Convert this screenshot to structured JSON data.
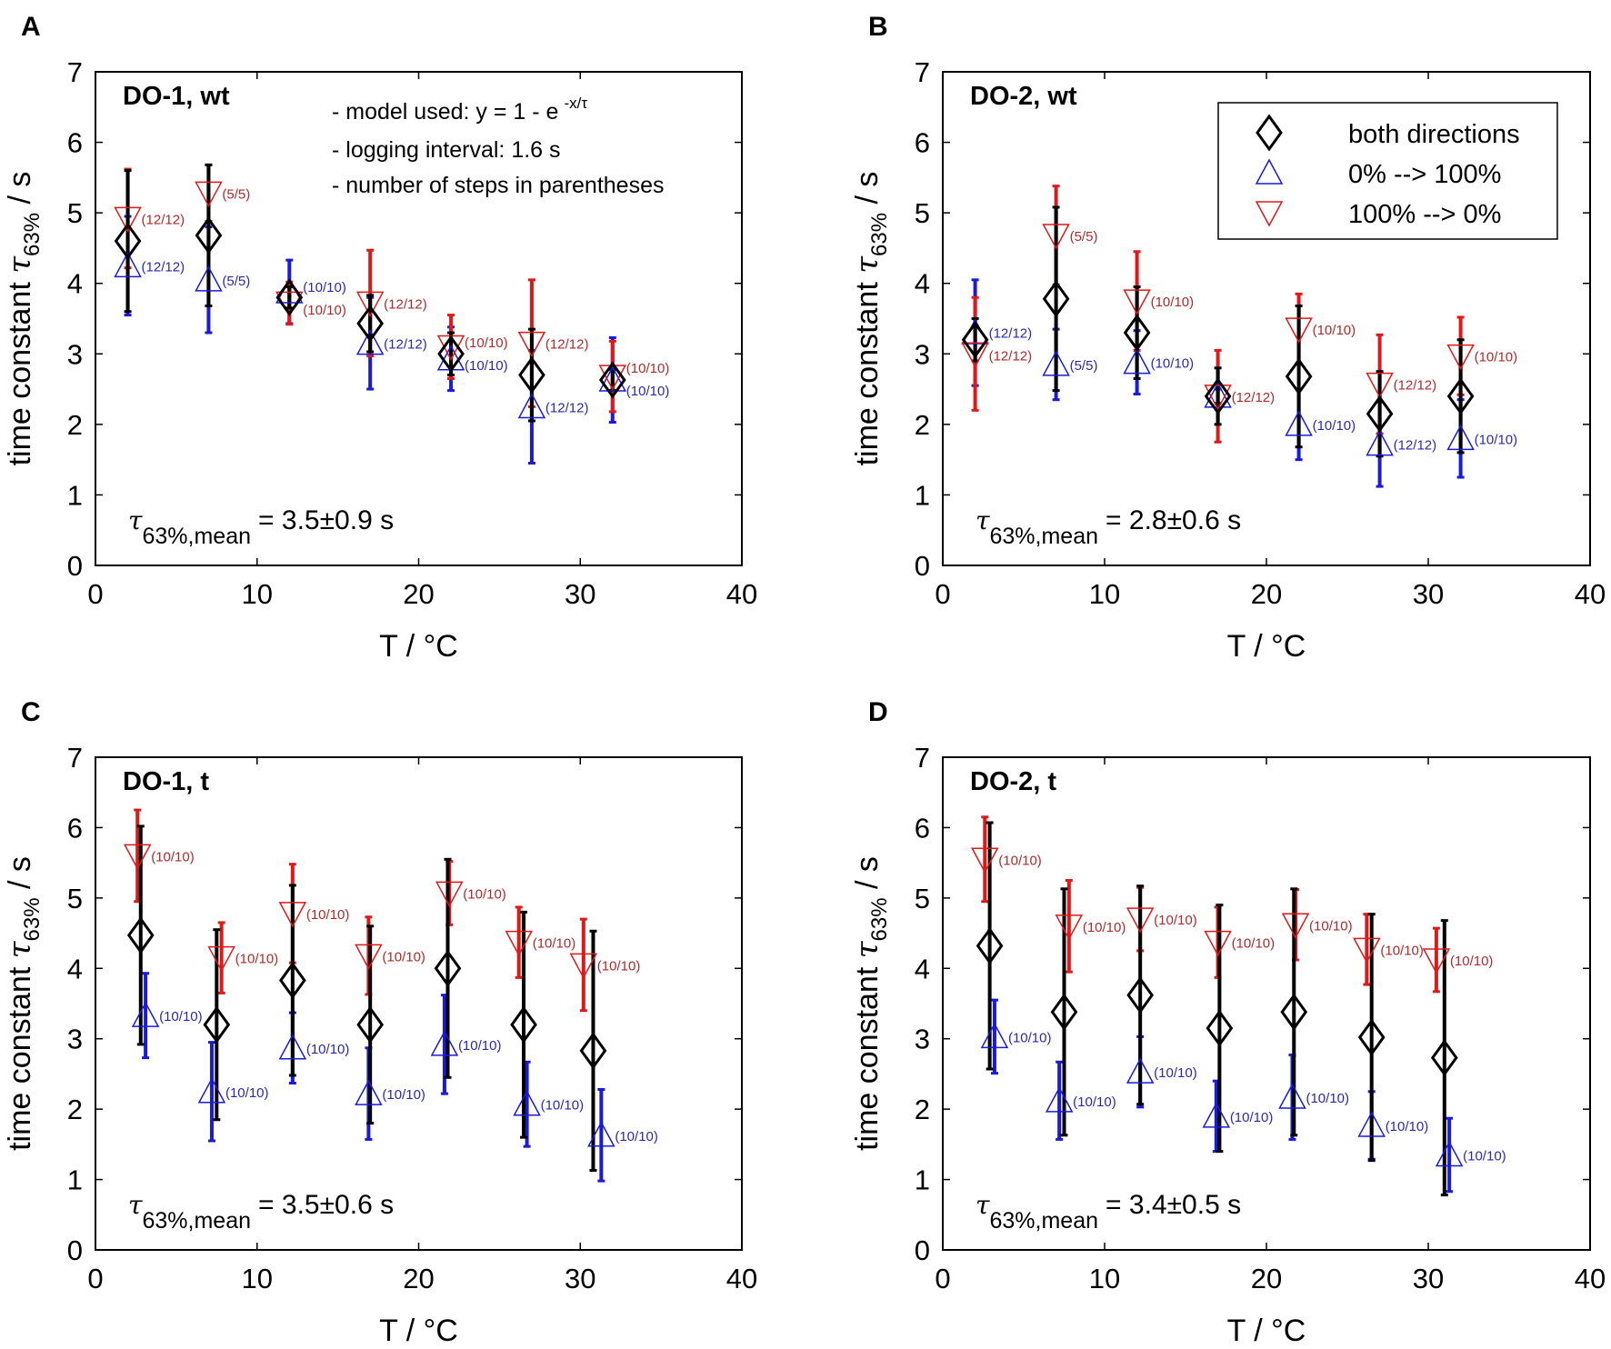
{
  "chart_data": [
    {
      "type": "scatter",
      "panel_letter": "A",
      "title": "DO-1, wt",
      "xlabel": "T / °C",
      "ylabel": "time constant τ63% / s",
      "xlim": [
        0,
        40
      ],
      "ylim": [
        0,
        7
      ],
      "xticks": [
        0,
        10,
        20,
        30,
        40
      ],
      "yticks": [
        0,
        1,
        2,
        3,
        4,
        5,
        6,
        7
      ],
      "mean_label": {
        "symbol": "τ",
        "sub": "63%,mean",
        "value": "= 3.5±0.9 s"
      },
      "notes": [
        "- model used: y = 1 - e",
        "-x/τ",
        "- logging interval: 1.6 s",
        "- number of steps in parentheses"
      ],
      "series": [
        {
          "name": "both directions",
          "marker": "diamond",
          "color": "#000000",
          "x": [
            2,
            7,
            12,
            17,
            22,
            27,
            32
          ],
          "y": [
            4.6,
            4.68,
            3.8,
            3.43,
            3.0,
            2.7,
            2.63
          ],
          "err": [
            1.0,
            1.0,
            0.15,
            0.4,
            0.3,
            0.65,
            0.15
          ],
          "labels": []
        },
        {
          "name": "0% --> 100%",
          "marker": "triangle-up",
          "color": "#1a1adb",
          "label_color": "#2a2ab0",
          "x": [
            2,
            7,
            12,
            17,
            22,
            27,
            32
          ],
          "y": [
            4.25,
            4.05,
            3.88,
            3.15,
            2.93,
            2.25,
            2.63
          ],
          "err": [
            0.7,
            0.75,
            0.45,
            0.65,
            0.45,
            0.8,
            0.6
          ],
          "labels": [
            "(12/12)",
            "(5/5)",
            "(10/10)",
            "(12/12)",
            "(10/10)",
            "(12/12)",
            "(10/10)"
          ]
        },
        {
          "name": "100% --> 0%",
          "marker": "triangle-down",
          "color": "#e01818",
          "label_color": "#b02a2a",
          "x": [
            2,
            7,
            12,
            17,
            22,
            27,
            32
          ],
          "y": [
            4.92,
            5.28,
            3.72,
            3.72,
            3.1,
            3.15,
            2.68
          ],
          "err": [
            0.7,
            0.4,
            0.3,
            0.75,
            0.45,
            0.9,
            0.5
          ],
          "labels": [
            "(12/12)",
            "(5/5)",
            "(10/10)",
            "(12/12)",
            "(10/10)",
            "(12/12)",
            "(10/10)"
          ]
        }
      ]
    },
    {
      "type": "scatter",
      "panel_letter": "B",
      "title": "DO-2, wt",
      "xlabel": "T / °C",
      "ylabel": "time constant τ63% / s",
      "xlim": [
        0,
        40
      ],
      "ylim": [
        0,
        7
      ],
      "xticks": [
        0,
        10,
        20,
        30,
        40
      ],
      "yticks": [
        0,
        1,
        2,
        3,
        4,
        5,
        6,
        7
      ],
      "mean_label": {
        "symbol": "τ",
        "sub": "63%,mean",
        "value": "= 2.8±0.6 s"
      },
      "legend": {
        "placement": "top-right",
        "entries": [
          "both directions",
          "0% --> 100%",
          "100% --> 0%"
        ]
      },
      "series": [
        {
          "name": "both directions",
          "marker": "diamond",
          "color": "#000000",
          "x": [
            2,
            7,
            12,
            17,
            22,
            27,
            32
          ],
          "y": [
            3.2,
            3.78,
            3.3,
            2.4,
            2.68,
            2.15,
            2.4
          ],
          "err": [
            0.3,
            1.3,
            0.65,
            0.4,
            1.0,
            0.6,
            0.8
          ],
          "labels": []
        },
        {
          "name": "0% --> 100%",
          "marker": "triangle-up",
          "color": "#1a1adb",
          "label_color": "#2a2ab0",
          "x": [
            2,
            7,
            12,
            17,
            22,
            27,
            32
          ],
          "y": [
            3.3,
            2.85,
            2.88,
            2.4,
            2.0,
            1.72,
            1.8
          ],
          "err": [
            0.75,
            0.5,
            0.45,
            0.1,
            0.5,
            0.6,
            0.55
          ],
          "labels": [
            "(12/12)",
            "(5/5)",
            "(10/10)",
            "",
            "(10/10)",
            "(12/12)",
            "(10/10)"
          ]
        },
        {
          "name": "100% --> 0%",
          "marker": "triangle-down",
          "color": "#e01818",
          "label_color": "#b02a2a",
          "x": [
            2,
            7,
            12,
            17,
            22,
            27,
            32
          ],
          "y": [
            3.0,
            4.68,
            3.75,
            2.4,
            3.35,
            2.57,
            2.97
          ],
          "err": [
            0.8,
            0.7,
            0.7,
            0.65,
            0.5,
            0.7,
            0.55
          ],
          "labels": [
            "(12/12)",
            "(5/5)",
            "(10/10)",
            "(12/12)",
            "(10/10)",
            "(12/12)",
            "(10/10)"
          ]
        }
      ]
    },
    {
      "type": "scatter",
      "panel_letter": "C",
      "title": "DO-1, t",
      "xlabel": "T / °C",
      "ylabel": "time constant τ63% / s",
      "xlim": [
        0,
        40
      ],
      "ylim": [
        0,
        7
      ],
      "xticks": [
        0,
        10,
        20,
        30,
        40
      ],
      "yticks": [
        0,
        1,
        2,
        3,
        4,
        5,
        6,
        7
      ],
      "mean_label": {
        "symbol": "τ",
        "sub": "63%,mean",
        "value": "= 3.5±0.6 s"
      },
      "series": [
        {
          "name": "both directions",
          "marker": "diamond",
          "color": "#000000",
          "x": [
            2.8,
            7.5,
            12.2,
            17,
            21.8,
            26.5,
            30.8
          ],
          "y": [
            4.47,
            3.2,
            3.83,
            3.2,
            4.0,
            3.2,
            2.83
          ],
          "err": [
            1.55,
            1.35,
            1.35,
            1.4,
            1.55,
            1.6,
            1.7
          ],
          "labels": []
        },
        {
          "name": "0% --> 100%",
          "marker": "triangle-up",
          "color": "#1a1adb",
          "label_color": "#2a2ab0",
          "x": [
            3.1,
            7.2,
            12.2,
            16.9,
            21.6,
            26.7,
            31.3
          ],
          "y": [
            3.33,
            2.25,
            2.87,
            2.22,
            2.92,
            2.07,
            1.63
          ],
          "err": [
            0.6,
            0.7,
            0.5,
            0.65,
            0.7,
            0.6,
            0.65
          ],
          "labels": [
            "(10/10)",
            "(10/10)",
            "(10/10)",
            "(10/10)",
            "(10/10)",
            "(10/10)",
            "(10/10)"
          ]
        },
        {
          "name": "100% --> 0%",
          "marker": "triangle-down",
          "color": "#e01818",
          "label_color": "#b02a2a",
          "x": [
            2.6,
            7.8,
            12.2,
            16.9,
            21.9,
            26.2,
            30.2
          ],
          "y": [
            5.6,
            4.15,
            4.78,
            4.18,
            5.07,
            4.37,
            4.05
          ],
          "err": [
            0.65,
            0.5,
            0.7,
            0.55,
            0.45,
            0.5,
            0.65
          ],
          "labels": [
            "(10/10)",
            "(10/10)",
            "(10/10)",
            "(10/10)",
            "(10/10)",
            "(10/10)",
            "(10/10)"
          ]
        }
      ]
    },
    {
      "type": "scatter",
      "panel_letter": "D",
      "title": "DO-2, t",
      "xlabel": "T / °C",
      "ylabel": "time constant τ63% / s",
      "xlim": [
        0,
        40
      ],
      "ylim": [
        0,
        7
      ],
      "xticks": [
        0,
        10,
        20,
        30,
        40
      ],
      "yticks": [
        0,
        1,
        2,
        3,
        4,
        5,
        6,
        7
      ],
      "mean_label": {
        "symbol": "τ",
        "sub": "63%,mean",
        "value": "= 3.4±0.5 s"
      },
      "series": [
        {
          "name": "both directions",
          "marker": "diamond",
          "color": "#000000",
          "x": [
            2.9,
            7.5,
            12.2,
            17.1,
            21.7,
            26.5,
            31.0
          ],
          "y": [
            4.32,
            3.38,
            3.62,
            3.15,
            3.38,
            3.02,
            2.73
          ],
          "err": [
            1.75,
            1.75,
            1.55,
            1.75,
            1.75,
            1.75,
            1.95
          ],
          "labels": []
        },
        {
          "name": "0% --> 100%",
          "marker": "triangle-up",
          "color": "#1a1adb",
          "label_color": "#2a2ab0",
          "x": [
            3.2,
            7.2,
            12.2,
            16.9,
            21.6,
            26.5,
            31.3
          ],
          "y": [
            3.03,
            2.12,
            2.53,
            1.9,
            2.17,
            1.77,
            1.35
          ],
          "err": [
            0.52,
            0.55,
            0.5,
            0.5,
            0.6,
            0.48,
            0.52
          ],
          "labels": [
            "(10/10)",
            "(10/10)",
            "(10/10)",
            "(10/10)",
            "(10/10)",
            "(10/10)",
            "(10/10)"
          ]
        },
        {
          "name": "100% --> 0%",
          "marker": "triangle-down",
          "color": "#e01818",
          "label_color": "#b02a2a",
          "x": [
            2.6,
            7.8,
            12.2,
            17.0,
            21.8,
            26.2,
            30.5
          ],
          "y": [
            5.55,
            4.6,
            4.7,
            4.37,
            4.62,
            4.27,
            4.12
          ],
          "err": [
            0.6,
            0.65,
            0.45,
            0.5,
            0.5,
            0.5,
            0.45
          ],
          "labels": [
            "(10/10)",
            "(10/10)",
            "(10/10)",
            "(10/10)",
            "(10/10)",
            "(10/10)",
            "(10/10)"
          ]
        }
      ]
    }
  ]
}
